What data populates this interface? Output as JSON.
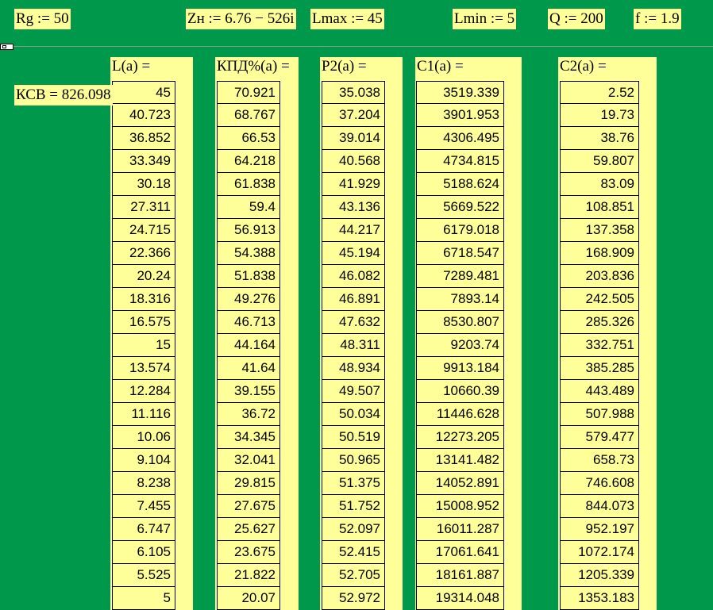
{
  "defs": {
    "rg": "Rg := 50",
    "zn": "Zн := 6.76 − 526i",
    "lmax": "Lmax := 45",
    "lmin": "Lmin := 5",
    "q": "Q := 200",
    "f": "f := 1.9"
  },
  "ksv": "КСВ = 826.098",
  "columns": {
    "L": {
      "header": "L(a) =",
      "values": [
        "45",
        "40.723",
        "36.852",
        "33.349",
        "30.18",
        "27.311",
        "24.715",
        "22.366",
        "20.24",
        "18.316",
        "16.575",
        "15",
        "13.574",
        "12.284",
        "11.116",
        "10.06",
        "9.104",
        "8.238",
        "7.455",
        "6.747",
        "6.105",
        "5.525",
        "5"
      ]
    },
    "kpd": {
      "header": "КПД%(a) =",
      "values": [
        "70.921",
        "68.767",
        "66.53",
        "64.218",
        "61.838",
        "59.4",
        "56.913",
        "54.388",
        "51.838",
        "49.276",
        "46.713",
        "44.164",
        "41.64",
        "39.155",
        "36.72",
        "34.345",
        "32.041",
        "29.815",
        "27.675",
        "25.627",
        "23.675",
        "21.822",
        "20.07"
      ]
    },
    "p2": {
      "header": "P2(a) =",
      "values": [
        "35.038",
        "37.204",
        "39.014",
        "40.568",
        "41.929",
        "43.136",
        "44.217",
        "45.194",
        "46.082",
        "46.891",
        "47.632",
        "48.311",
        "48.934",
        "49.507",
        "50.034",
        "50.519",
        "50.965",
        "51.375",
        "51.752",
        "52.097",
        "52.415",
        "52.705",
        "52.972"
      ]
    },
    "c1": {
      "header": "C1(a) =",
      "values": [
        "3519.339",
        "3901.953",
        "4306.495",
        "4734.815",
        "5188.624",
        "5669.522",
        "6179.018",
        "6718.547",
        "7289.481",
        "7893.14",
        "8530.807",
        "9203.74",
        "9913.184",
        "10660.39",
        "11446.628",
        "12273.205",
        "13141.482",
        "14052.891",
        "15008.952",
        "16011.287",
        "17061.641",
        "18161.887",
        "19314.048"
      ]
    },
    "c2": {
      "header": "C2(a) =",
      "values": [
        "2.52",
        "19.73",
        "38.76",
        "59.807",
        "83.09",
        "108.851",
        "137.358",
        "168.909",
        "203.836",
        "242.505",
        "285.326",
        "332.751",
        "385.285",
        "443.489",
        "507.988",
        "579.477",
        "658.73",
        "746.608",
        "844.073",
        "952.197",
        "1072.174",
        "1205.339",
        "1353.183"
      ]
    }
  }
}
